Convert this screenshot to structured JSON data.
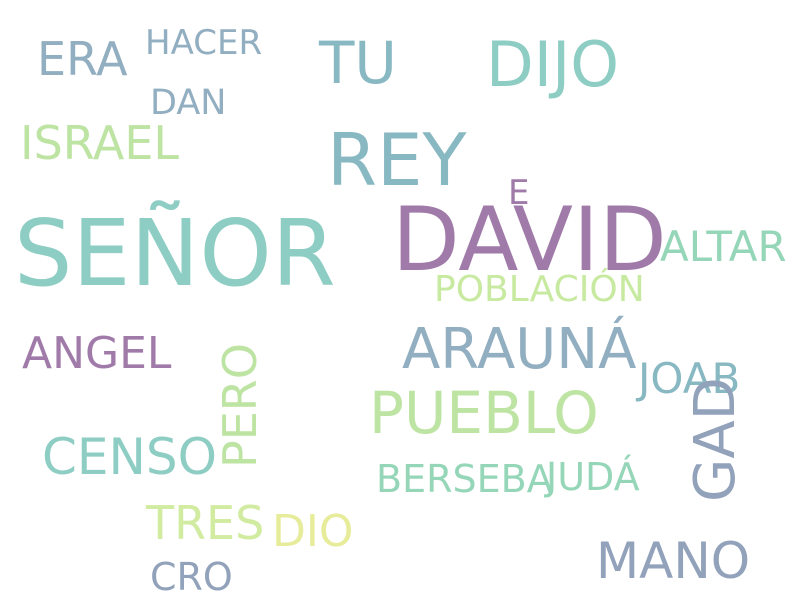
{
  "words": [
    {
      "text": "SEÑOR",
      "color": "#8ecdc3"
    },
    {
      "text": "DAVID",
      "color": "#a07ba9"
    },
    {
      "text": "REY",
      "color": "#88b8c2"
    },
    {
      "text": "DIJO",
      "color": "#8ecdc3"
    },
    {
      "text": "TU",
      "color": "#88b8c2"
    },
    {
      "text": "ERA",
      "color": "#92aec1"
    },
    {
      "text": "HACER",
      "color": "#92aec1"
    },
    {
      "text": "DAN",
      "color": "#92aec1"
    },
    {
      "text": "ISRAEL",
      "color": "#bde4a2"
    },
    {
      "text": "E",
      "color": "#a07ba9"
    },
    {
      "text": "ALTAR",
      "color": "#95d6b8"
    },
    {
      "text": "POBLACIÓN",
      "color": "#c8eaa0"
    },
    {
      "text": "ARAUNÁ",
      "color": "#92aec1"
    },
    {
      "text": "ANGEL",
      "color": "#a07ba9"
    },
    {
      "text": "PERO",
      "color": "#bde4a2"
    },
    {
      "text": "JOAB",
      "color": "#88b8c2"
    },
    {
      "text": "PUEBLO",
      "color": "#bde4a2"
    },
    {
      "text": "GAD",
      "color": "#92a2bb"
    },
    {
      "text": "CENSO",
      "color": "#8ecdc3"
    },
    {
      "text": "BERSEBA",
      "color": "#95d6b8"
    },
    {
      "text": "JUDÁ",
      "color": "#95d6b8"
    },
    {
      "text": "TRES",
      "color": "#d1eba0"
    },
    {
      "text": "DIO",
      "color": "#e6ec9a"
    },
    {
      "text": "CRO",
      "color": "#92a2bb"
    },
    {
      "text": "MANO",
      "color": "#92a2bb"
    }
  ]
}
